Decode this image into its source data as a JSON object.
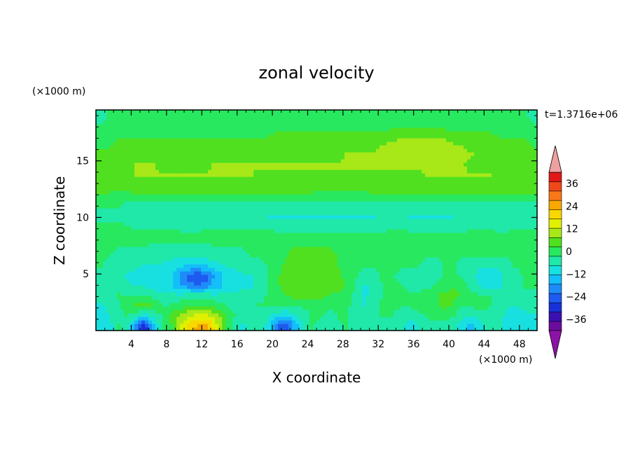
{
  "chart_data": {
    "type": "heatmap",
    "title": "zonal velocity",
    "xlabel": "X coordinate",
    "ylabel": "Z coordinate",
    "x_scale_note": "(×1000 m)",
    "y_scale_note": "(×1000 m)",
    "time_label": "t=1.3716e+06",
    "xlim": [
      0,
      50
    ],
    "ylim": [
      0,
      19.5
    ],
    "x_ticks": [
      4,
      8,
      12,
      16,
      20,
      24,
      28,
      32,
      36,
      40,
      44,
      48
    ],
    "y_ticks": [
      5,
      10,
      15
    ],
    "grid": false,
    "legend": "colorbar right",
    "colorbar": {
      "labels": [
        36,
        24,
        12,
        0,
        -12,
        -24,
        -36
      ],
      "range": [
        -42,
        42
      ],
      "level_colors": [
        "#6a0d9c",
        "#3a10b0",
        "#1830d8",
        "#1e5af0",
        "#1e8cf8",
        "#14bef8",
        "#18e0e0",
        "#20e8a8",
        "#28e860",
        "#50e020",
        "#a8e818",
        "#e0f000",
        "#f8d800",
        "#f8a800",
        "#f87818",
        "#f04818",
        "#e01818"
      ],
      "under_color": "#8e12a8",
      "over_color": "#f0a0a0"
    },
    "grid_values": [
      [
        -12,
        -10,
        -2,
        -6,
        -18,
        -32,
        -14,
        -2,
        2,
        12,
        19,
        23,
        23,
        16,
        6,
        -4,
        -8,
        -7,
        -4,
        -10,
        -22,
        -28,
        -16,
        -6,
        -2,
        -4,
        -6,
        -3,
        -2,
        -4,
        -4,
        -6,
        -4,
        -4,
        -6,
        -10,
        -8,
        -4,
        -4,
        -4,
        -6,
        -10,
        -14,
        -10,
        -6,
        -6,
        -10,
        -12,
        -12,
        -10
      ],
      [
        -10,
        -8,
        -4,
        -2,
        -6,
        -10,
        -6,
        -2,
        4,
        8,
        12,
        14,
        14,
        10,
        4,
        -2,
        -4,
        -4,
        -4,
        -6,
        -10,
        -12,
        -8,
        -4,
        -2,
        -2,
        -4,
        -2,
        -2,
        -4,
        -4,
        -4,
        -2,
        -2,
        -4,
        -6,
        -4,
        -2,
        0,
        0,
        -2,
        -6,
        -8,
        -6,
        -4,
        -4,
        -8,
        -10,
        -10,
        -8
      ],
      [
        -8,
        -6,
        -4,
        0,
        4,
        6,
        2,
        -2,
        -2,
        0,
        2,
        2,
        2,
        0,
        -2,
        -4,
        -4,
        -4,
        -2,
        -2,
        -2,
        -2,
        -2,
        -2,
        -2,
        0,
        -2,
        -2,
        -2,
        -4,
        -8,
        -4,
        -2,
        -2,
        -2,
        -2,
        0,
        2,
        2,
        4,
        2,
        -2,
        -2,
        0,
        -2,
        -4,
        -6,
        -8,
        -6,
        -4
      ],
      [
        -6,
        -4,
        -2,
        -2,
        -2,
        -2,
        -4,
        -6,
        -6,
        -6,
        -4,
        -4,
        -4,
        -6,
        -6,
        -6,
        -6,
        -6,
        -4,
        -2,
        0,
        2,
        4,
        4,
        4,
        4,
        2,
        2,
        0,
        -4,
        -8,
        -6,
        -2,
        0,
        0,
        -2,
        -2,
        0,
        2,
        4,
        4,
        2,
        0,
        -2,
        -2,
        -4,
        -6,
        -4,
        -4,
        -4
      ],
      [
        -4,
        -4,
        -4,
        -6,
        -8,
        -8,
        -10,
        -10,
        -12,
        -16,
        -20,
        -22,
        -20,
        -16,
        -12,
        -10,
        -8,
        -8,
        -6,
        -2,
        2,
        4,
        6,
        6,
        6,
        6,
        4,
        4,
        2,
        -4,
        -8,
        -6,
        -2,
        0,
        -2,
        -4,
        -4,
        -4,
        -2,
        0,
        2,
        0,
        -4,
        -8,
        -10,
        -10,
        -6,
        -4,
        -2,
        -2
      ],
      [
        -4,
        -6,
        -6,
        -8,
        -10,
        -10,
        -10,
        -10,
        -12,
        -18,
        -24,
        -28,
        -24,
        -16,
        -12,
        -10,
        -8,
        -8,
        -6,
        -2,
        2,
        4,
        6,
        6,
        6,
        6,
        4,
        4,
        0,
        -2,
        -4,
        -4,
        -2,
        -2,
        -4,
        -4,
        -4,
        -4,
        -4,
        -2,
        0,
        -4,
        -6,
        -10,
        -12,
        -10,
        -6,
        -4,
        -2,
        -2
      ],
      [
        -2,
        -4,
        -4,
        -6,
        -6,
        -8,
        -8,
        -8,
        -10,
        -12,
        -12,
        -12,
        -12,
        -10,
        -8,
        -6,
        -6,
        -4,
        -4,
        -2,
        0,
        4,
        6,
        6,
        6,
        6,
        4,
        2,
        0,
        -2,
        -2,
        -2,
        0,
        0,
        -2,
        -2,
        -2,
        -4,
        -4,
        -2,
        -2,
        -4,
        -4,
        -6,
        -6,
        -6,
        -4,
        -2,
        -2,
        -2
      ],
      [
        -2,
        -2,
        -4,
        -4,
        -4,
        -4,
        -6,
        -6,
        -6,
        -6,
        -6,
        -6,
        -6,
        -4,
        -4,
        -4,
        -4,
        -2,
        -2,
        0,
        0,
        2,
        4,
        4,
        4,
        4,
        4,
        2,
        0,
        -2,
        -2,
        0,
        2,
        2,
        0,
        0,
        -2,
        -2,
        -2,
        -2,
        -2,
        -2,
        -2,
        -2,
        -2,
        -2,
        -2,
        -2,
        0,
        0
      ],
      [
        0,
        -2,
        -2,
        -2,
        -2,
        -2,
        -4,
        -4,
        -4,
        -4,
        -4,
        -4,
        -4,
        -2,
        -2,
        -2,
        -2,
        -2,
        0,
        0,
        0,
        2,
        2,
        2,
        2,
        2,
        2,
        0,
        0,
        0,
        -2,
        0,
        0,
        0,
        0,
        0,
        0,
        -2,
        -2,
        -2,
        -2,
        -2,
        0,
        0,
        -2,
        -2,
        -2,
        0,
        0,
        0
      ],
      [
        0,
        0,
        2,
        2,
        0,
        0,
        0,
        0,
        2,
        0,
        0,
        0,
        0,
        0,
        0,
        0,
        0,
        0,
        0,
        0,
        0,
        0,
        0,
        0,
        0,
        0,
        0,
        0,
        0,
        -2,
        -2,
        -2,
        -2,
        0,
        0,
        0,
        0,
        0,
        0,
        0,
        -2,
        -2,
        0,
        0,
        0,
        -2,
        -2,
        0,
        0,
        0
      ],
      [
        -2,
        -2,
        -2,
        -2,
        -4,
        -4,
        -4,
        -4,
        -4,
        -6,
        -6,
        -6,
        -4,
        -4,
        -4,
        -4,
        -4,
        -4,
        -4,
        -4,
        -6,
        -6,
        -6,
        -6,
        -6,
        -6,
        -6,
        -6,
        -6,
        -6,
        -6,
        -6,
        -4,
        -4,
        -4,
        -6,
        -6,
        -6,
        -6,
        -6,
        -6,
        -6,
        -4,
        -4,
        -4,
        -4,
        -4,
        -4,
        -4,
        -4
      ],
      [
        -4,
        -4,
        -4,
        -6,
        -6,
        -6,
        -6,
        -6,
        -6,
        -6,
        -6,
        -6,
        -6,
        -6,
        -6,
        -6,
        -6,
        -6,
        -6,
        -8,
        -8,
        -8,
        -8,
        -8,
        -8,
        -8,
        -8,
        -8,
        -8,
        -8,
        -8,
        -8,
        -6,
        -6,
        -6,
        -8,
        -8,
        -8,
        -8,
        -8,
        -8,
        -6,
        -6,
        -6,
        -6,
        -6,
        -6,
        -6,
        -6,
        -6
      ],
      [
        -2,
        -2,
        -2,
        -4,
        -4,
        -4,
        -4,
        -4,
        -4,
        -4,
        -4,
        -4,
        -4,
        -4,
        -4,
        -4,
        -4,
        -4,
        -4,
        -4,
        -4,
        -4,
        -4,
        -4,
        -4,
        -4,
        -4,
        -4,
        -4,
        -4,
        -4,
        -4,
        -4,
        -4,
        -4,
        -4,
        -4,
        -4,
        -4,
        -4,
        -4,
        -4,
        -4,
        -4,
        -4,
        -4,
        -4,
        -4,
        -4,
        -4
      ],
      [
        2,
        2,
        0,
        0,
        2,
        2,
        2,
        2,
        2,
        2,
        2,
        2,
        2,
        2,
        2,
        2,
        2,
        2,
        2,
        2,
        2,
        2,
        2,
        2,
        2,
        0,
        0,
        0,
        0,
        0,
        0,
        2,
        2,
        2,
        2,
        2,
        2,
        2,
        2,
        2,
        2,
        2,
        2,
        2,
        2,
        2,
        2,
        2,
        2,
        2
      ],
      [
        4,
        4,
        4,
        4,
        6,
        6,
        6,
        6,
        6,
        6,
        6,
        6,
        6,
        6,
        6,
        6,
        6,
        6,
        6,
        6,
        6,
        6,
        6,
        4,
        4,
        4,
        4,
        4,
        4,
        4,
        6,
        6,
        6,
        6,
        6,
        6,
        6,
        6,
        6,
        6,
        6,
        6,
        6,
        6,
        6,
        6,
        6,
        4,
        4,
        4
      ],
      [
        6,
        6,
        6,
        6,
        8,
        8,
        8,
        8,
        8,
        8,
        8,
        8,
        8,
        8,
        8,
        8,
        8,
        8,
        6,
        6,
        6,
        6,
        6,
        6,
        6,
        6,
        6,
        6,
        6,
        6,
        6,
        6,
        6,
        6,
        6,
        6,
        6,
        8,
        8,
        8,
        8,
        8,
        8,
        8,
        8,
        6,
        6,
        6,
        6,
        6
      ],
      [
        6,
        6,
        6,
        6,
        8,
        8,
        8,
        6,
        6,
        6,
        6,
        6,
        6,
        8,
        8,
        8,
        8,
        8,
        8,
        8,
        8,
        8,
        8,
        8,
        8,
        8,
        8,
        8,
        8,
        8,
        8,
        8,
        8,
        8,
        8,
        8,
        8,
        8,
        8,
        8,
        8,
        8,
        6,
        6,
        6,
        6,
        6,
        6,
        6,
        6
      ],
      [
        4,
        4,
        4,
        6,
        6,
        6,
        6,
        6,
        6,
        6,
        6,
        6,
        6,
        6,
        6,
        6,
        6,
        6,
        6,
        6,
        6,
        6,
        6,
        6,
        6,
        6,
        6,
        6,
        8,
        8,
        8,
        8,
        8,
        8,
        8,
        8,
        8,
        10,
        10,
        10,
        10,
        8,
        8,
        6,
        6,
        6,
        6,
        6,
        4,
        4
      ],
      [
        2,
        2,
        4,
        4,
        4,
        4,
        4,
        4,
        4,
        4,
        4,
        4,
        4,
        4,
        4,
        4,
        4,
        4,
        4,
        4,
        6,
        6,
        6,
        6,
        6,
        6,
        6,
        6,
        6,
        6,
        6,
        6,
        8,
        8,
        10,
        12,
        12,
        12,
        10,
        10,
        8,
        8,
        6,
        6,
        6,
        6,
        4,
        4,
        4,
        2
      ],
      [
        0,
        0,
        2,
        2,
        2,
        2,
        2,
        2,
        2,
        2,
        2,
        2,
        2,
        2,
        2,
        2,
        2,
        2,
        2,
        2,
        4,
        4,
        4,
        4,
        4,
        4,
        4,
        4,
        4,
        4,
        4,
        4,
        4,
        6,
        6,
        6,
        6,
        6,
        6,
        6,
        4,
        4,
        4,
        4,
        4,
        2,
        2,
        2,
        2,
        0
      ],
      [
        -2,
        -2,
        0,
        0,
        0,
        0,
        0,
        0,
        0,
        0,
        0,
        0,
        0,
        0,
        0,
        0,
        0,
        0,
        0,
        0,
        0,
        0,
        0,
        0,
        0,
        0,
        0,
        0,
        0,
        0,
        0,
        0,
        0,
        0,
        0,
        0,
        0,
        0,
        0,
        0,
        0,
        0,
        0,
        0,
        0,
        0,
        0,
        0,
        0,
        -2
      ],
      [
        -4,
        -2,
        -2,
        -2,
        -2,
        -2,
        -2,
        -2,
        -2,
        -2,
        -2,
        -2,
        -2,
        -2,
        -2,
        -2,
        -2,
        -2,
        -2,
        -2,
        -2,
        -2,
        -2,
        -2,
        -2,
        -2,
        -2,
        -2,
        -2,
        -2,
        -2,
        -2,
        -2,
        -2,
        -2,
        -2,
        -2,
        -2,
        -2,
        -2,
        -2,
        -2,
        -2,
        -2,
        -2,
        -2,
        -2,
        -2,
        -2,
        -4
      ]
    ]
  }
}
